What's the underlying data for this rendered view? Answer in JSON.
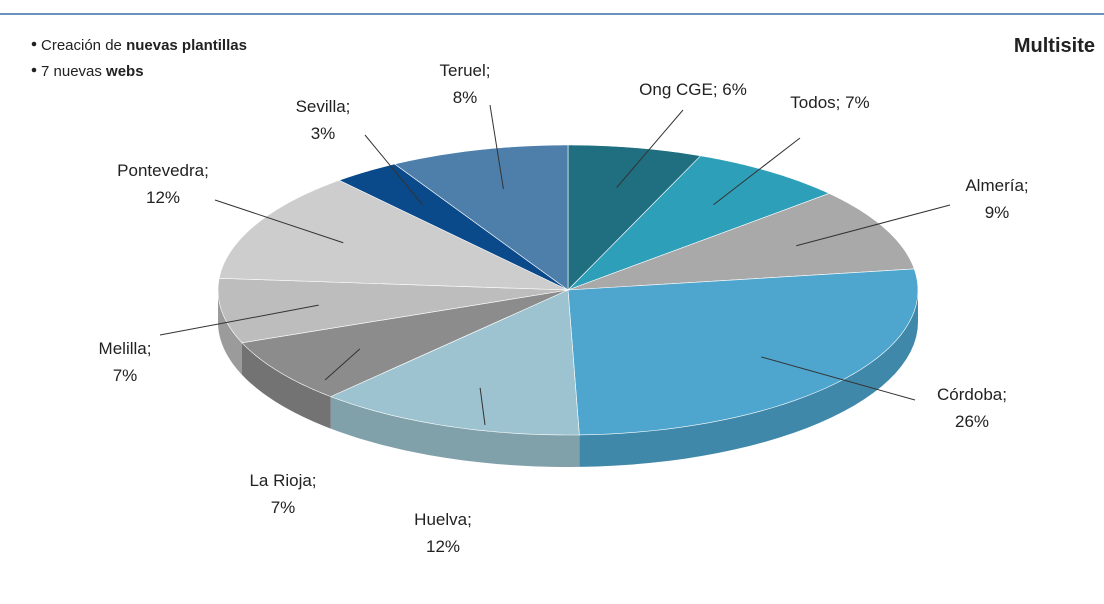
{
  "chart_data": {
    "type": "pie3d",
    "title": "Multisite",
    "bullets": [
      [
        "Creación de ",
        "nuevas plantillas"
      ],
      [
        "7 nuevas ",
        "webs"
      ]
    ],
    "values": [
      6,
      7,
      9,
      26,
      12,
      7,
      7,
      12,
      3,
      8
    ],
    "value_labels": [
      "Ong CGE; 6%",
      "Todos; 7%",
      "Almería; 9%",
      "Córdoba; 26%",
      "Huelva; 12%",
      "La Rioja; 7%",
      "Melilla; 7%",
      "Pontevedra; 12%",
      "Sevilla; 3%",
      "Teruel; 8%"
    ],
    "colors": [
      "#1f6f80",
      "#2e9fb8",
      "#a9a9a9",
      "#4ea6cf",
      "#9cc3cf",
      "#8c8c8c",
      "#bdbdbd",
      "#cdcdcd",
      "#0b4a8a",
      "#4e7fab"
    ]
  }
}
